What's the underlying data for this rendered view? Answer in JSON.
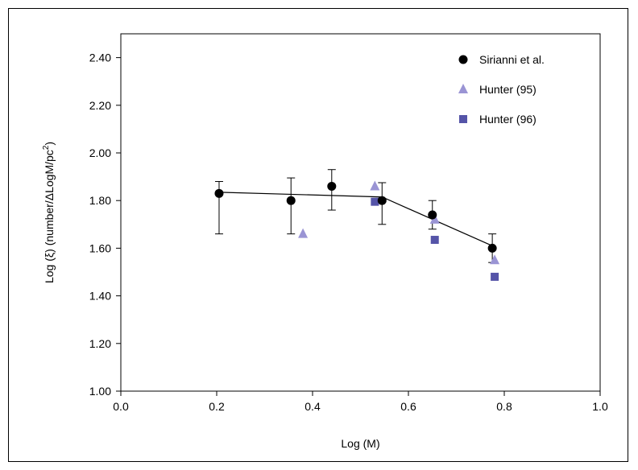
{
  "chart_data": {
    "type": "scatter",
    "title": "",
    "xlabel": "Log (M)",
    "ylabel": "Log (ξ) (number/ΔLogM/pc",
    "ylabel_sup": "2",
    "ylabel_close": ")",
    "xlim": [
      0.0,
      1.0
    ],
    "ylim": [
      1.0,
      2.5
    ],
    "xticks": [
      0.0,
      0.2,
      0.4,
      0.6,
      0.8,
      1.0
    ],
    "xtick_labels": [
      "0.0",
      "0.2",
      "0.4",
      "0.6",
      "0.8",
      "1.0"
    ],
    "yticks": [
      1.0,
      1.2,
      1.4,
      1.6,
      1.8,
      2.0,
      2.2,
      2.4
    ],
    "ytick_labels": [
      "1.00",
      "1.20",
      "1.40",
      "1.60",
      "1.80",
      "2.00",
      "2.20",
      "2.40"
    ],
    "grid": false,
    "legend_position": "top-right",
    "series": [
      {
        "name": "Sirianni et al.",
        "marker": "circle",
        "color": "#000000",
        "x": [
          0.205,
          0.355,
          0.44,
          0.545,
          0.65,
          0.775
        ],
        "y": [
          1.83,
          1.8,
          1.86,
          1.8,
          1.74,
          1.6
        ],
        "yerr_low": [
          1.66,
          1.66,
          1.76,
          1.7,
          1.68,
          1.54
        ],
        "yerr_high": [
          1.88,
          1.895,
          1.93,
          1.875,
          1.8,
          1.66
        ]
      },
      {
        "name": "Hunter (95)",
        "marker": "triangle",
        "color": "#9a94d4",
        "x": [
          0.38,
          0.53,
          0.655,
          0.78
        ],
        "y": [
          1.66,
          1.86,
          1.72,
          1.55
        ]
      },
      {
        "name": "Hunter (96)",
        "marker": "square",
        "color": "#5554a8",
        "x": [
          0.53,
          0.655,
          0.78
        ],
        "y": [
          1.795,
          1.635,
          1.48
        ]
      }
    ],
    "fit_line": {
      "x": [
        0.205,
        0.545,
        0.775
      ],
      "y": [
        1.835,
        1.815,
        1.61
      ]
    }
  }
}
